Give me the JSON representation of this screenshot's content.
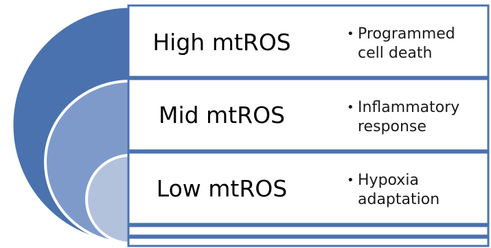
{
  "diagram": {
    "colors": {
      "outer_arc": "#4a72ae",
      "middle_arc": "#7e9acb",
      "inner_arc": "#b3c2dc",
      "bar_fill": "#ffffff",
      "bar_border": "#4a72ae",
      "text": "#000000"
    },
    "levels": [
      {
        "label": "High mtROS",
        "effect": "Programmed\ncell death"
      },
      {
        "label": "Mid mtROS",
        "effect": "Inflammatory\nresponse"
      },
      {
        "label": "Low mtROS",
        "effect": "Hypoxia\nadaptation"
      }
    ],
    "bullet_symbol": "•"
  }
}
